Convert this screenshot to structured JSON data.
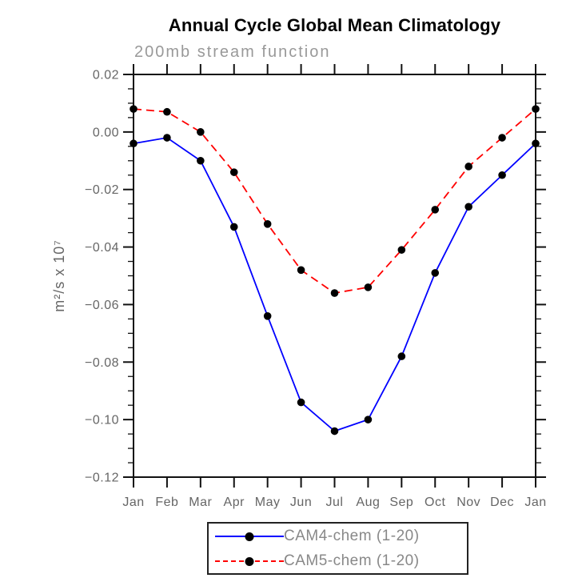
{
  "title": "Annual Cycle Global Mean Climatology",
  "subtitle": "200mb stream function",
  "chart_data": {
    "type": "line",
    "categories": [
      "Jan",
      "Feb",
      "Mar",
      "Apr",
      "May",
      "Jun",
      "Jul",
      "Aug",
      "Sep",
      "Oct",
      "Nov",
      "Dec",
      "Jan"
    ],
    "series": [
      {
        "name": "CAM4-chem (1-20)",
        "color": "#0000ff",
        "line_style": "solid",
        "marker": "circle",
        "marker_color": "#000000",
        "values": [
          -0.004,
          -0.002,
          -0.01,
          -0.033,
          -0.064,
          -0.094,
          -0.104,
          -0.1,
          -0.078,
          -0.049,
          -0.026,
          -0.015,
          -0.004
        ]
      },
      {
        "name": "CAM5-chem (1-20)",
        "color": "#ff0000",
        "line_style": "dashed",
        "marker": "circle",
        "marker_color": "#000000",
        "values": [
          0.008,
          0.007,
          0.0,
          -0.014,
          -0.032,
          -0.048,
          -0.056,
          -0.054,
          -0.041,
          -0.027,
          -0.012,
          -0.002,
          0.008
        ]
      }
    ],
    "xlabel": "",
    "ylabel": "m²/s x 10⁷",
    "ylim": [
      -0.12,
      0.02
    ],
    "ytick_step": 0.02,
    "yminor_step": 0.005,
    "grid": false,
    "legend_position": "bottom-center"
  }
}
